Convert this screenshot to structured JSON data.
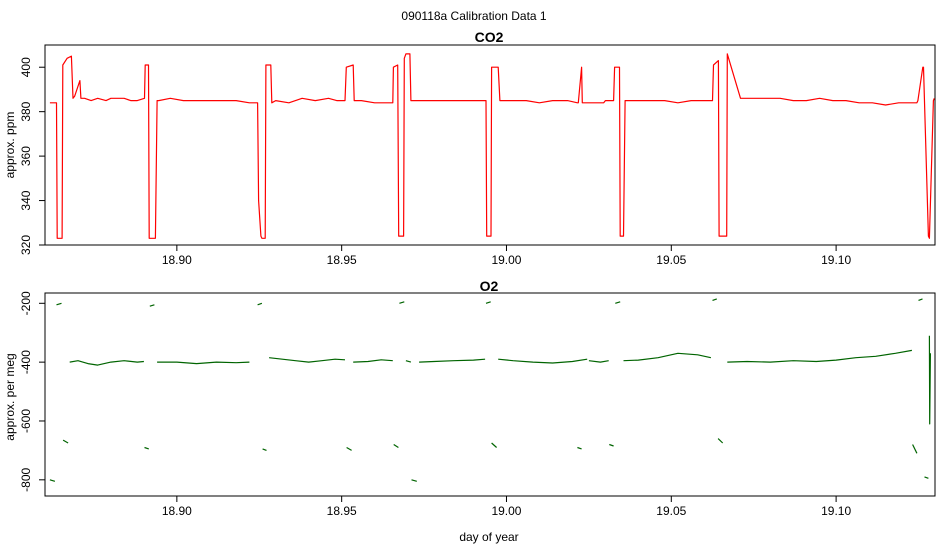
{
  "figure": {
    "suptitle": "090118a   Calibration Data 1",
    "xlabel": "day of year"
  },
  "colors": {
    "co2": "#ff0000",
    "o2": "#006400",
    "axis": "#000000"
  },
  "chart_data": [
    {
      "type": "line",
      "title": "CO2",
      "xlabel": "",
      "ylabel": "approx. ppm",
      "xlim": [
        18.86,
        19.13
      ],
      "ylim": [
        320,
        410
      ],
      "xticks": [
        "18.90",
        "18.95",
        "19.00",
        "19.05",
        "19.10"
      ],
      "yticks": [
        "320",
        "340",
        "360",
        "380",
        "400"
      ],
      "series": [
        {
          "color": "#ff0000",
          "x": [
            18.8615,
            18.8635,
            18.8637,
            18.8652,
            18.8654,
            18.8667,
            18.868,
            18.8685,
            18.869,
            18.8706,
            18.8709,
            18.872,
            18.874,
            18.876,
            18.8785,
            18.88,
            18.882,
            18.884,
            18.886,
            18.888,
            18.8902,
            18.8904,
            18.8914,
            18.8916,
            18.8935,
            18.894,
            18.8945,
            18.898,
            18.902,
            18.906,
            18.91,
            18.914,
            18.918,
            18.922,
            18.9245,
            18.9248,
            18.9255,
            18.9258,
            18.9268,
            18.927,
            18.9285,
            18.9288,
            18.93,
            18.934,
            18.938,
            18.942,
            18.946,
            18.9485,
            18.9487,
            18.951,
            18.9514,
            18.9535,
            18.9538,
            18.956,
            18.96,
            18.964,
            18.9655,
            18.9657,
            18.967,
            18.9673,
            18.9688,
            18.969,
            18.9695,
            18.9707,
            18.971,
            18.974,
            18.978,
            18.982,
            18.986,
            18.99,
            18.9938,
            18.994,
            18.9953,
            18.9955,
            18.9975,
            18.998,
            19.002,
            19.006,
            19.01,
            19.014,
            19.0185,
            19.0215,
            19.0218,
            19.0228,
            19.023,
            19.026,
            19.0295,
            19.03,
            19.0325,
            19.0328,
            19.0343,
            19.0345,
            19.0355,
            19.036,
            19.04,
            19.044,
            19.048,
            19.052,
            19.056,
            19.0595,
            19.0625,
            19.0628,
            19.0643,
            19.0645,
            19.0668,
            19.067,
            19.071,
            19.075,
            19.079,
            19.083,
            19.087,
            19.091,
            19.095,
            19.099,
            19.103,
            19.107,
            19.111,
            19.115,
            19.119,
            19.1225,
            19.1245,
            19.1248,
            19.1263,
            19.1265,
            19.128,
            19.1283,
            19.1295,
            19.1298
          ],
          "y": [
            384,
            384,
            323,
            323,
            401,
            404,
            405,
            386,
            387,
            394,
            386,
            386,
            385,
            386,
            385,
            386,
            386,
            386,
            385,
            385,
            386,
            401,
            401,
            323,
            323,
            385,
            385,
            386,
            385,
            385,
            385,
            385,
            385,
            384,
            384,
            340,
            324,
            323,
            323,
            401,
            401,
            384,
            385,
            384,
            386,
            385,
            386,
            385,
            385,
            385,
            400,
            401,
            385,
            385,
            384,
            384,
            384,
            400,
            401,
            324,
            324,
            404,
            406,
            406,
            385,
            385,
            385,
            385,
            385,
            385,
            385,
            324,
            324,
            400,
            400,
            385,
            385,
            385,
            384,
            385,
            385,
            384,
            384,
            400,
            384,
            384,
            384,
            385,
            385,
            400,
            400,
            324,
            324,
            385,
            385,
            385,
            385,
            384,
            385,
            385,
            385,
            401,
            403,
            324,
            324,
            406,
            386,
            386,
            386,
            386,
            385,
            385,
            386,
            385,
            385,
            384,
            384,
            383,
            384,
            384,
            384,
            385,
            400,
            400,
            324,
            323,
            385,
            386
          ]
        }
      ]
    },
    {
      "type": "line",
      "title": "O2",
      "xlabel": "day of year",
      "ylabel": "approx. per meg",
      "xlim": [
        18.86,
        19.13
      ],
      "ylim": [
        -855,
        -165
      ],
      "xticks": [
        "18.90",
        "18.95",
        "19.00",
        "19.05",
        "19.10"
      ],
      "yticks": [
        "-800",
        "-600",
        "-400",
        "-200"
      ],
      "series": [
        {
          "color": "#006400",
          "segments": [
            {
              "x": [
                18.8615,
                18.863
              ],
              "y": [
                -800,
                -805
              ]
            },
            {
              "x": [
                18.8635,
                18.865
              ],
              "y": [
                -205,
                -200
              ]
            },
            {
              "x": [
                18.8655,
                18.867
              ],
              "y": [
                -665,
                -675
              ]
            },
            {
              "x": [
                18.8675,
                18.87,
                18.873,
                18.876,
                18.88,
                18.884,
                18.888,
                18.89
              ],
              "y": [
                -400,
                -395,
                -405,
                -410,
                -400,
                -395,
                -400,
                -398
              ]
            },
            {
              "x": [
                18.8902,
                18.8915
              ],
              "y": [
                -690,
                -695
              ]
            },
            {
              "x": [
                18.8918,
                18.8932
              ],
              "y": [
                -210,
                -205
              ]
            },
            {
              "x": [
                18.894,
                18.9,
                18.906,
                18.912,
                18.918,
                18.922
              ],
              "y": [
                -400,
                -400,
                -405,
                -400,
                -402,
                -400
              ]
            },
            {
              "x": [
                18.9245,
                18.9258
              ],
              "y": [
                -205,
                -200
              ]
            },
            {
              "x": [
                18.926,
                18.9272
              ],
              "y": [
                -695,
                -700
              ]
            },
            {
              "x": [
                18.928,
                18.932,
                18.936,
                18.94,
                18.944,
                18.948,
                18.951
              ],
              "y": [
                -385,
                -390,
                -395,
                -400,
                -395,
                -390,
                -392
              ]
            },
            {
              "x": [
                18.9515,
                18.953
              ],
              "y": [
                -690,
                -700
              ]
            },
            {
              "x": [
                18.9535,
                18.958,
                18.962,
                18.9655
              ],
              "y": [
                -400,
                -398,
                -392,
                -395
              ]
            },
            {
              "x": [
                18.9658,
                18.9672
              ],
              "y": [
                -680,
                -690
              ]
            },
            {
              "x": [
                18.9675,
                18.969
              ],
              "y": [
                -200,
                -195
              ]
            },
            {
              "x": [
                18.9695,
                18.971
              ],
              "y": [
                -395,
                -400
              ]
            },
            {
              "x": [
                18.9712,
                18.9728
              ],
              "y": [
                -800,
                -805
              ]
            },
            {
              "x": [
                18.9735,
                18.978,
                18.984,
                18.99,
                18.9935
              ],
              "y": [
                -400,
                -398,
                -395,
                -393,
                -390
              ]
            },
            {
              "x": [
                18.9938,
                18.9952
              ],
              "y": [
                -200,
                -195
              ]
            },
            {
              "x": [
                18.9955,
                18.997
              ],
              "y": [
                -675,
                -690
              ]
            },
            {
              "x": [
                18.9975,
                19.002,
                19.008,
                19.014,
                19.02,
                19.0245
              ],
              "y": [
                -390,
                -395,
                -400,
                -403,
                -398,
                -390
              ]
            },
            {
              "x": [
                19.0215,
                19.0228
              ],
              "y": [
                -690,
                -695
              ]
            },
            {
              "x": [
                19.025,
                19.0285,
                19.031
              ],
              "y": [
                -395,
                -400,
                -395
              ]
            },
            {
              "x": [
                19.0312,
                19.0325
              ],
              "y": [
                -680,
                -685
              ]
            },
            {
              "x": [
                19.033,
                19.0345
              ],
              "y": [
                -200,
                -195
              ]
            },
            {
              "x": [
                19.0355,
                19.04,
                19.046,
                19.052,
                19.058,
                19.062
              ],
              "y": [
                -395,
                -393,
                -385,
                -370,
                -375,
                -385
              ]
            },
            {
              "x": [
                19.0625,
                19.0638
              ],
              "y": [
                -190,
                -185
              ]
            },
            {
              "x": [
                19.0642,
                19.0656
              ],
              "y": [
                -660,
                -675
              ]
            },
            {
              "x": [
                19.067,
                19.073,
                19.08,
                19.087,
                19.094,
                19.1,
                19.106,
                19.112,
                19.118,
                19.123
              ],
              "y": [
                -400,
                -398,
                -400,
                -395,
                -398,
                -393,
                -385,
                -380,
                -370,
                -360
              ]
            },
            {
              "x": [
                19.1232,
                19.1245
              ],
              "y": [
                -680,
                -710
              ]
            },
            {
              "x": [
                19.125,
                19.1262
              ],
              "y": [
                -190,
                -185
              ]
            },
            {
              "x": [
                19.1268,
                19.128
              ],
              "y": [
                -790,
                -795
              ]
            },
            {
              "x": [
                19.1283,
                19.1284,
                19.1286
              ],
              "y": [
                -310,
                -610,
                -370
              ]
            }
          ]
        }
      ]
    }
  ]
}
